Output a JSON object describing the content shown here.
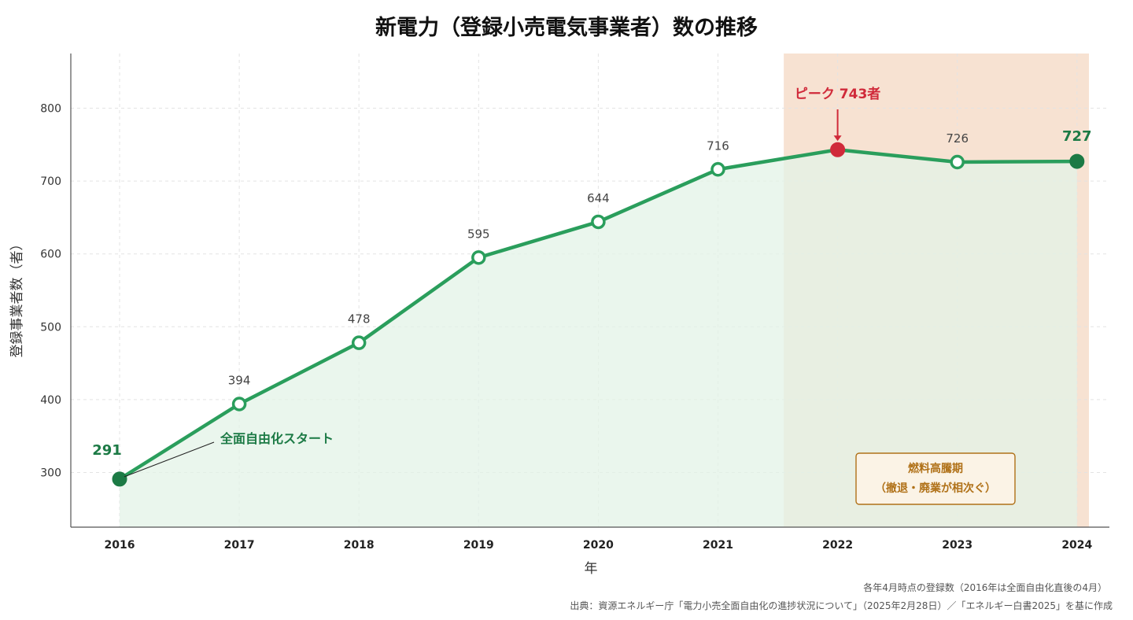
{
  "chart_data": {
    "type": "line",
    "title": "新電力（登録小売電気事業者）数の推移",
    "xlabel": "年",
    "ylabel": "登録事業者数（者）",
    "x": [
      "2016",
      "2017",
      "2018",
      "2019",
      "2020",
      "2021",
      "2022",
      "2023",
      "2024"
    ],
    "series": [
      {
        "values": [
          291,
          394,
          478,
          595,
          644,
          716,
          743,
          726,
          727
        ],
        "labels": [
          "291",
          "394",
          "478",
          "595",
          "644",
          "716",
          "743",
          "726",
          "727"
        ]
      }
    ],
    "ylim": [
      225,
      875
    ],
    "yticks": [
      300,
      400,
      500,
      600,
      700,
      800
    ],
    "grid": true,
    "line_color": "#2a9e5c",
    "fill_color": "#e3f3e7",
    "highlight_color": "#1c7a45",
    "peak_color": "#d02a3a",
    "shaded_region": {
      "from_year": 2021.55,
      "to_year": 2024.1,
      "color": "#f7e2d2",
      "label_line1": "燃料高騰期",
      "label_line2": "（撤退・廃業が相次ぐ）",
      "label_color": "#b07118"
    },
    "annotations": {
      "start": "全面自由化スタート",
      "peak": "ピーク 743者"
    }
  },
  "notes": {
    "line1": "各年4月時点の登録数（2016年は全面自由化直後の4月）",
    "line2": "出典：資源エネルギー庁「電力小売全面自由化の進捗状況について」（2025年2月28日）／「エネルギー白書2025」を基に作成"
  }
}
